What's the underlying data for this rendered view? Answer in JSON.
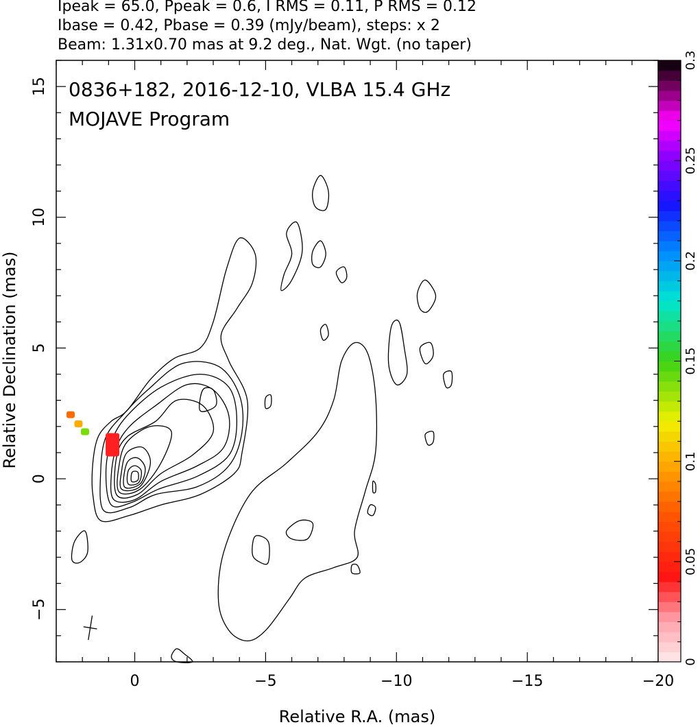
{
  "header": {
    "line1": "Ipeak = 65.0, Ppeak = 0.6, I RMS = 0.11, P RMS = 0.12",
    "line2": "Ibase = 0.42, Pbase = 0.39 (mJy/beam), steps: x 2",
    "line3": "Beam: 1.31x0.70 mas at 9.2 deg., Nat. Wgt. (no taper)"
  },
  "chart_data": {
    "type": "contour",
    "annotations": [
      "0836+182, 2016-12-10, VLBA 15.4 GHz",
      "MOJAVE Program"
    ],
    "xlabel": "Relative R.A. (mas)",
    "ylabel": "Relative Declination (mas)",
    "xlim": [
      3,
      -20
    ],
    "ylim": [
      -7,
      16
    ],
    "xticks": [
      0,
      -5,
      -10,
      -15,
      -20
    ],
    "xtick_labels": [
      "0",
      "−5",
      "−10",
      "−15",
      "−20"
    ],
    "yticks": [
      -5,
      0,
      5,
      10,
      15
    ],
    "ytick_labels": [
      "−5",
      "0",
      "5",
      "10",
      "15"
    ],
    "colorbar": {
      "range": [
        0,
        0.3
      ],
      "ticks": [
        0,
        0.05,
        0.1,
        0.15,
        0.2,
        0.25,
        0.3
      ],
      "tick_labels": [
        "0",
        "0.05",
        "0.1",
        "0.15",
        "0.2",
        "0.25",
        "0.3"
      ]
    },
    "beam": {
      "major_mas": 1.31,
      "minor_mas": 0.7,
      "pa_deg": 9.2
    },
    "core": {
      "x": 0,
      "y": 0.1
    },
    "polarization_patches": [
      {
        "name": "red-patch",
        "x": 0.85,
        "y": 1.3,
        "value": 0.04
      },
      {
        "name": "green-patch",
        "x": 1.9,
        "y": 1.8,
        "value": 0.14
      },
      {
        "name": "yellow-patch",
        "x": 2.15,
        "y": 2.1,
        "value": 0.1
      },
      {
        "name": "orange-patch",
        "x": 2.45,
        "y": 2.45,
        "value": 0.08
      }
    ],
    "contours": [
      {
        "name": "outer-jet",
        "points": [
          [
            1.3,
            -1.6
          ],
          [
            0.2,
            -1.4
          ],
          [
            -1.0,
            -1.0
          ],
          [
            -2.5,
            -0.6
          ],
          [
            -3.8,
            0.2
          ],
          [
            -4.1,
            1.0
          ],
          [
            -4.3,
            3.0
          ],
          [
            -3.6,
            4.5
          ],
          [
            -3.3,
            5.5
          ],
          [
            -3.9,
            6.5
          ],
          [
            -4.5,
            7.5
          ],
          [
            -4.6,
            8.6
          ],
          [
            -4.0,
            9.2
          ],
          [
            -3.5,
            8.0
          ],
          [
            -3.0,
            6.0
          ],
          [
            -2.5,
            5.0
          ],
          [
            -1.5,
            4.6
          ],
          [
            -0.6,
            3.8
          ],
          [
            0.3,
            2.6
          ],
          [
            0.9,
            2.2
          ],
          [
            1.4,
            1.6
          ],
          [
            1.6,
            0.6
          ],
          [
            1.6,
            -0.6
          ]
        ]
      },
      {
        "name": "contour-2",
        "points": [
          [
            1.2,
            -1.2
          ],
          [
            0.2,
            -1.1
          ],
          [
            -0.8,
            -0.6
          ],
          [
            -2.4,
            -0.3
          ],
          [
            -3.6,
            0.5
          ],
          [
            -4.1,
            1.8
          ],
          [
            -4.0,
            3.2
          ],
          [
            -3.2,
            4.3
          ],
          [
            -1.8,
            4.4
          ],
          [
            -0.5,
            3.4
          ],
          [
            0.4,
            2.5
          ],
          [
            1.1,
            1.6
          ],
          [
            1.3,
            0.3
          ]
        ]
      },
      {
        "name": "contour-3",
        "points": [
          [
            0.9,
            -1.0
          ],
          [
            0.1,
            -0.9
          ],
          [
            -0.9,
            -0.4
          ],
          [
            -2.4,
            0.1
          ],
          [
            -3.6,
            0.9
          ],
          [
            -3.9,
            2.2
          ],
          [
            -3.6,
            3.5
          ],
          [
            -2.5,
            4.0
          ],
          [
            -1.0,
            3.5
          ],
          [
            0.3,
            2.4
          ],
          [
            0.9,
            1.4
          ],
          [
            1.1,
            0.2
          ]
        ]
      },
      {
        "name": "contour-4",
        "points": [
          [
            0.8,
            -0.8
          ],
          [
            0.0,
            -0.8
          ],
          [
            -1.0,
            -0.1
          ],
          [
            -2.4,
            0.5
          ],
          [
            -3.4,
            1.2
          ],
          [
            -3.6,
            2.4
          ],
          [
            -3.0,
            3.4
          ],
          [
            -2.0,
            3.6
          ],
          [
            -0.8,
            2.8
          ],
          [
            0.2,
            2.0
          ],
          [
            0.7,
            1.2
          ],
          [
            0.9,
            0.1
          ]
        ]
      },
      {
        "name": "contour-5",
        "points": [
          [
            0.7,
            -0.6
          ],
          [
            -0.1,
            -0.6
          ],
          [
            -1.0,
            0.2
          ],
          [
            -2.2,
            0.9
          ],
          [
            -3.0,
            1.8
          ],
          [
            -2.6,
            2.8
          ],
          [
            -1.6,
            3.0
          ],
          [
            -0.8,
            2.2
          ],
          [
            0.3,
            1.6
          ],
          [
            0.7,
            0.8
          ]
        ]
      },
      {
        "name": "contour-6",
        "points": [
          [
            0.6,
            -0.5
          ],
          [
            -0.2,
            -0.4
          ],
          [
            -1.0,
            0.6
          ],
          [
            -1.4,
            1.8
          ],
          [
            -0.6,
            2.0
          ],
          [
            0.3,
            1.4
          ],
          [
            0.6,
            0.5
          ]
        ]
      },
      {
        "name": "contour-7",
        "points": [
          [
            0.5,
            -0.4
          ],
          [
            -0.2,
            -0.3
          ],
          [
            -0.6,
            0.6
          ],
          [
            -0.3,
            1.2
          ],
          [
            0.3,
            1.0
          ],
          [
            0.5,
            0.3
          ]
        ]
      },
      {
        "name": "contour-8",
        "points": [
          [
            0.4,
            -0.3
          ],
          [
            -0.2,
            -0.2
          ],
          [
            -0.4,
            0.4
          ],
          [
            -0.1,
            0.8
          ],
          [
            0.3,
            0.6
          ]
        ]
      },
      {
        "name": "contour-9",
        "points": [
          [
            0.25,
            -0.2
          ],
          [
            -0.15,
            -0.15
          ],
          [
            -0.25,
            0.3
          ],
          [
            0.0,
            0.5
          ],
          [
            0.25,
            0.3
          ]
        ]
      },
      {
        "name": "contour-10",
        "points": [
          [
            0.12,
            -0.1
          ],
          [
            -0.12,
            -0.05
          ],
          [
            -0.12,
            0.25
          ],
          [
            0.1,
            0.25
          ]
        ]
      },
      {
        "name": "contour-11",
        "points": [
          [
            -2.5,
            2.6
          ],
          [
            -2.6,
            3.4
          ],
          [
            -3.0,
            3.4
          ],
          [
            -3.1,
            2.8
          ]
        ]
      },
      {
        "name": "extended-jet",
        "points": [
          [
            -3.2,
            -4.7
          ],
          [
            -3.4,
            -2.8
          ],
          [
            -4.4,
            -0.6
          ],
          [
            -5.8,
            0.6
          ],
          [
            -7.0,
            1.8
          ],
          [
            -7.6,
            3.0
          ],
          [
            -7.9,
            4.5
          ],
          [
            -8.4,
            5.2
          ],
          [
            -8.9,
            4.8
          ],
          [
            -9.2,
            3.2
          ],
          [
            -9.2,
            1.0
          ],
          [
            -8.8,
            -0.5
          ],
          [
            -8.4,
            -2.0
          ],
          [
            -8.5,
            -3.0
          ],
          [
            -7.6,
            -3.4
          ],
          [
            -6.5,
            -3.8
          ],
          [
            -5.9,
            -4.6
          ],
          [
            -5.0,
            -5.8
          ],
          [
            -4.3,
            -6.2
          ],
          [
            -3.6,
            -5.8
          ]
        ]
      },
      {
        "name": "blob-11",
        "points": [
          [
            -6.8,
            11.0
          ],
          [
            -7.1,
            11.6
          ],
          [
            -7.4,
            11.0
          ],
          [
            -7.3,
            10.3
          ],
          [
            -6.9,
            10.4
          ]
        ]
      },
      {
        "name": "blob-9",
        "points": [
          [
            -5.8,
            9.4
          ],
          [
            -6.2,
            9.8
          ],
          [
            -6.4,
            8.7
          ],
          [
            -6.0,
            7.6
          ],
          [
            -5.6,
            7.2
          ],
          [
            -5.7,
            7.8
          ],
          [
            -6.0,
            8.6
          ]
        ]
      },
      {
        "name": "blob-9b",
        "points": [
          [
            -6.8,
            8.7
          ],
          [
            -7.1,
            9.1
          ],
          [
            -7.3,
            8.6
          ],
          [
            -7.1,
            8.1
          ],
          [
            -6.8,
            8.2
          ]
        ]
      },
      {
        "name": "blob-8",
        "points": [
          [
            -7.7,
            7.9
          ],
          [
            -8.0,
            8.1
          ],
          [
            -8.1,
            7.7
          ],
          [
            -7.9,
            7.5
          ]
        ]
      },
      {
        "name": "blob-7",
        "points": [
          [
            -10.8,
            7.1
          ],
          [
            -11.1,
            7.6
          ],
          [
            -11.5,
            7.0
          ],
          [
            -11.2,
            6.4
          ],
          [
            -10.9,
            6.5
          ]
        ]
      },
      {
        "name": "blob-5.5",
        "points": [
          [
            -9.8,
            5.8
          ],
          [
            -10.1,
            6.0
          ],
          [
            -10.3,
            5.0
          ],
          [
            -10.4,
            4.0
          ],
          [
            -10.0,
            3.6
          ],
          [
            -9.7,
            4.4
          ]
        ]
      },
      {
        "name": "blob-5",
        "points": [
          [
            -10.9,
            5.0
          ],
          [
            -11.3,
            5.2
          ],
          [
            -11.4,
            4.7
          ],
          [
            -11.1,
            4.4
          ]
        ]
      },
      {
        "name": "blob-3.8",
        "points": [
          [
            -11.8,
            4.0
          ],
          [
            -12.1,
            4.1
          ],
          [
            -12.1,
            3.6
          ],
          [
            -11.9,
            3.5
          ]
        ]
      },
      {
        "name": "blob-1.5",
        "points": [
          [
            -11.1,
            1.7
          ],
          [
            -11.4,
            1.8
          ],
          [
            -11.4,
            1.4
          ],
          [
            -11.2,
            1.3
          ]
        ]
      },
      {
        "name": "blob-5.5b",
        "points": [
          [
            -7.1,
            5.7
          ],
          [
            -7.3,
            5.9
          ],
          [
            -7.4,
            5.5
          ],
          [
            -7.2,
            5.3
          ]
        ]
      },
      {
        "name": "blob-3",
        "points": [
          [
            -5.0,
            3.1
          ],
          [
            -5.2,
            3.2
          ],
          [
            -5.2,
            2.8
          ],
          [
            -5.0,
            2.7
          ]
        ]
      },
      {
        "name": "blob-left",
        "points": [
          [
            1.9,
            -2.0
          ],
          [
            2.3,
            -2.4
          ],
          [
            2.4,
            -3.1
          ],
          [
            2.1,
            -3.2
          ],
          [
            1.8,
            -2.8
          ]
        ]
      },
      {
        "name": "blob-bottom",
        "points": [
          [
            -1.6,
            -6.5
          ],
          [
            -1.9,
            -6.7
          ],
          [
            -2.2,
            -7.0
          ],
          [
            -1.6,
            -7.0
          ],
          [
            -1.4,
            -6.8
          ]
        ]
      },
      {
        "name": "blob-minus3",
        "points": [
          [
            -4.6,
            -2.2
          ],
          [
            -5.1,
            -2.4
          ],
          [
            -5.1,
            -3.2
          ],
          [
            -4.8,
            -3.2
          ],
          [
            -4.5,
            -2.9
          ]
        ]
      },
      {
        "name": "blob-minus2",
        "points": [
          [
            -6.3,
            -1.6
          ],
          [
            -6.8,
            -1.7
          ],
          [
            -6.6,
            -2.3
          ],
          [
            -6.0,
            -2.3
          ],
          [
            -5.8,
            -2.0
          ]
        ]
      },
      {
        "name": "blob-minus0.3",
        "points": [
          [
            -9.1,
            -0.1
          ],
          [
            -9.2,
            -0.2
          ],
          [
            -9.2,
            -0.5
          ],
          [
            -9.1,
            -0.5
          ]
        ]
      },
      {
        "name": "blob-minus1",
        "points": [
          [
            -9.0,
            -1.0
          ],
          [
            -9.2,
            -1.1
          ],
          [
            -9.1,
            -1.4
          ],
          [
            -8.9,
            -1.3
          ]
        ]
      },
      {
        "name": "blob-minus3.3",
        "points": [
          [
            -8.3,
            -3.3
          ],
          [
            -8.5,
            -3.3
          ],
          [
            -8.6,
            -3.6
          ],
          [
            -8.3,
            -3.6
          ]
        ]
      }
    ]
  }
}
